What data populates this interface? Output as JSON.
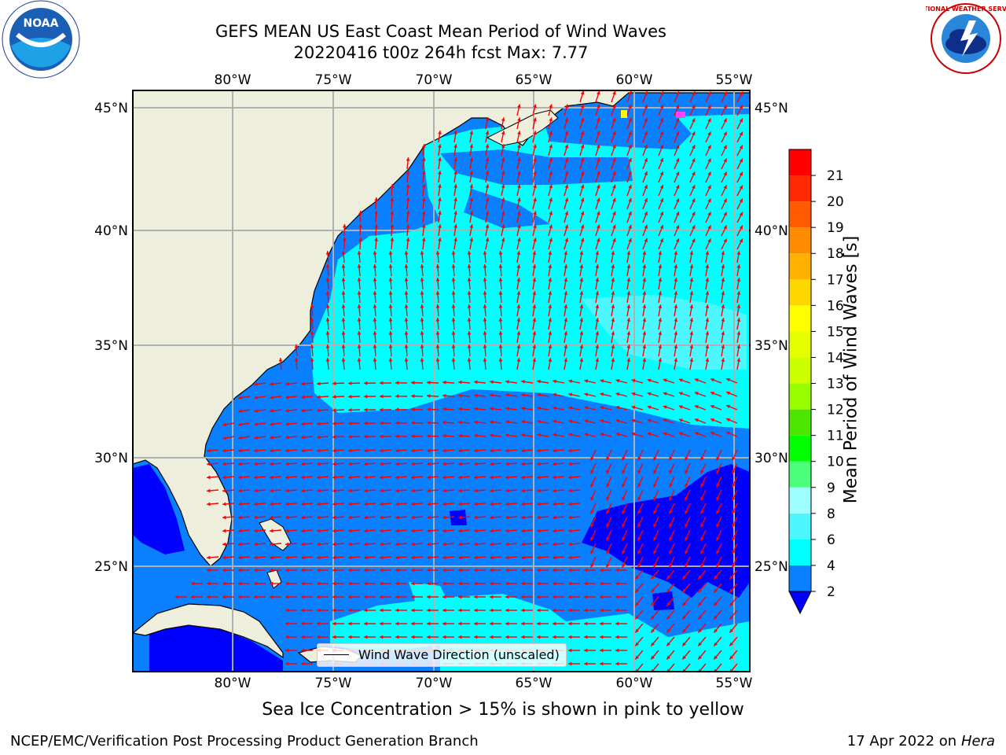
{
  "title": {
    "line1": "GEFS MEAN US East Coast Mean Period of Wind Waves",
    "line2": "20220416 t00z 264h fcst   Max: 7.77"
  },
  "logos": {
    "left": {
      "name": "noaa-logo",
      "text": "NOAA"
    },
    "right": {
      "name": "nws-logo",
      "text": "NATIONAL WEATHER SERVICE"
    }
  },
  "map": {
    "lon_ticks": [
      "80°W",
      "75°W",
      "70°W",
      "65°W",
      "60°W",
      "55°W"
    ],
    "lat_ticks": [
      "45°N",
      "40°N",
      "35°N",
      "30°N",
      "25°N"
    ],
    "legend_label": "Wind Wave Direction (unscaled)",
    "colors": {
      "land": "#eeeedc",
      "level_2_4": "#0a80ff",
      "level_4_6": "#00ffff",
      "level_6_8": "#4df7ff",
      "under_2": "#0000ff",
      "arrow": "#ff0000"
    }
  },
  "colorbar": {
    "label": "Mean Period of Wind Waves [s]",
    "ticks": [
      "2",
      "4",
      "6",
      "8",
      "9",
      "10",
      "11",
      "12",
      "13",
      "14",
      "15",
      "16",
      "17",
      "18",
      "19",
      "20",
      "21"
    ],
    "colors": [
      "#0a80ff",
      "#00ffff",
      "#4df7ff",
      "#9effff",
      "#4cff7a",
      "#00ff00",
      "#4ce600",
      "#99ff00",
      "#ccff00",
      "#e6ff00",
      "#ffff00",
      "#ffd700",
      "#ffb000",
      "#ff8c00",
      "#ff5a00",
      "#ff2a00",
      "#ff0000"
    ],
    "extend_color": "#0000ff"
  },
  "note": "Sea Ice Concentration > 15% is shown in pink to yellow",
  "footer": {
    "left": "NCEP/EMC/Verification Post Processing Product Generation Branch",
    "right_date": "17 Apr 2022 on ",
    "right_system": "Hera"
  }
}
